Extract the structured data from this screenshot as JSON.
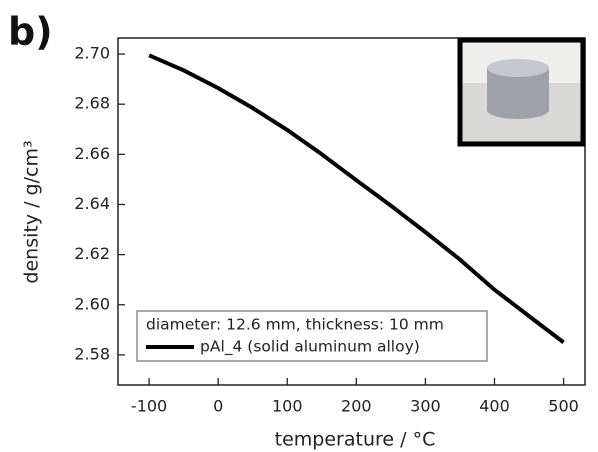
{
  "panel_label": "b)",
  "chart_data": {
    "type": "line",
    "xlabel": "temperature / °C",
    "ylabel": "density / g/cm³",
    "x": [
      -100,
      -50,
      0,
      50,
      100,
      150,
      200,
      250,
      300,
      350,
      400,
      450,
      500
    ],
    "series": [
      {
        "name": "pAl_4 (solid aluminum alloy)",
        "color": "#000000",
        "values": [
          2.6995,
          2.6935,
          2.6864,
          2.6785,
          2.6697,
          2.66,
          2.6497,
          2.6395,
          2.629,
          2.618,
          2.606,
          2.5955,
          2.585
        ]
      }
    ],
    "legend_title": "diameter: 12.6 mm, thickness: 10 mm",
    "legend": "lower center",
    "xlim": [
      -145,
      531
    ],
    "ylim": [
      2.568,
      2.7064
    ],
    "xticks": [
      -100,
      0,
      100,
      200,
      300,
      400,
      500
    ],
    "yticks": [
      {
        "value": 2.58,
        "label": "2.58"
      },
      {
        "value": 2.6,
        "label": "2.60"
      },
      {
        "value": 2.62,
        "label": "2.62"
      },
      {
        "value": 2.64,
        "label": "2.64"
      },
      {
        "value": 2.66,
        "label": "2.66"
      },
      {
        "value": 2.68,
        "label": "2.68"
      },
      {
        "value": 2.7,
        "label": "2.70"
      }
    ]
  }
}
